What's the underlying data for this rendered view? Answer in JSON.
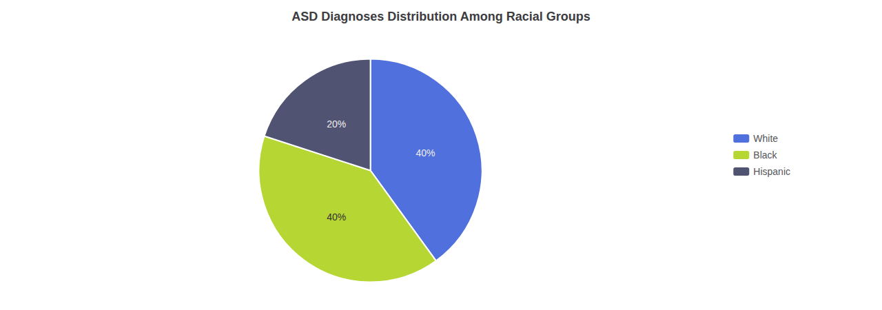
{
  "chart_data": {
    "type": "pie",
    "title": "ASD Diagnoses Distribution Among Racial Groups",
    "categories": [
      "White",
      "Black",
      "Hispanic"
    ],
    "values": [
      40,
      40,
      20
    ],
    "value_labels": [
      "40%",
      "40%",
      "20%"
    ],
    "data_labels": true,
    "legend": "right"
  }
}
